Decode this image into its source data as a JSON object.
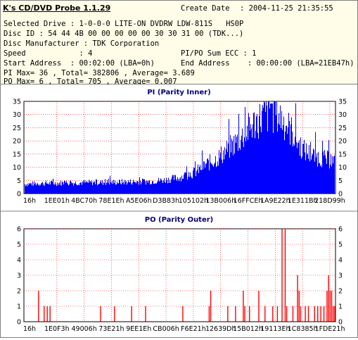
{
  "app": {
    "title": "K's CD/DVD Probe 1.1.29"
  },
  "info": {
    "create_date_label": "Create Date",
    "create_date_value": ": 2004-11-25 21:35:55",
    "line1": "Selected Drive : 1-0-0-0 LITE-ON DVDRW LDW-811S   HS0P",
    "line2": "Disc ID : 54 44 4B 00 00 00 00 00 30 30 31 00 (TDK...)",
    "line3": "Disc Manufacturer : TDK Corporation",
    "speed_text": "Speed            : 4",
    "ecc_text": "PI/PO Sum ECC : 1",
    "start_text": "Start Address  : 00:02:00 (LBA=0h)",
    "end_text": "End Address    : 00:00:00 (LBA=21EB47h)",
    "pi_stats": "PI Max= 36 , Total= 382806 , Average= 3.689",
    "po_stats": "PO Max= 6 , Total= 705 , Average= 0.007"
  },
  "colors": {
    "bar": "#0000ff",
    "po_bar": "#ff0000",
    "grid": "#ff0000",
    "title_text": "#00007a",
    "info_bg": "#fffde8"
  },
  "chart_data": [
    {
      "type": "bar",
      "title": "PI (Parity Inner)",
      "ylim": [
        0,
        35
      ],
      "yticks": [
        0,
        5,
        10,
        15,
        20,
        25,
        30,
        35
      ],
      "xtick_labels": [
        "16h",
        "1EE01h",
        "4BC70h",
        "78E1Eh",
        "A5E06h",
        "D3B83h",
        "105102h",
        "13B006h",
        "16FFCEh",
        "1A9E22h",
        "1E311Bh",
        "218D99h"
      ],
      "profile": [
        [
          0,
          3.5
        ],
        [
          0.05,
          3.8
        ],
        [
          0.15,
          4
        ],
        [
          0.28,
          4.2
        ],
        [
          0.4,
          4.5
        ],
        [
          0.45,
          5
        ],
        [
          0.5,
          6
        ],
        [
          0.55,
          8
        ],
        [
          0.58,
          10.5
        ],
        [
          0.62,
          13
        ],
        [
          0.66,
          17
        ],
        [
          0.7,
          21
        ],
        [
          0.73,
          25
        ],
        [
          0.77,
          29
        ],
        [
          0.8,
          30
        ],
        [
          0.82,
          29
        ],
        [
          0.84,
          26
        ],
        [
          0.86,
          23
        ],
        [
          0.88,
          19
        ],
        [
          0.9,
          16
        ],
        [
          0.93,
          14
        ],
        [
          0.96,
          13
        ],
        [
          1.0,
          12
        ]
      ],
      "max_value": 36,
      "grid": true
    },
    {
      "type": "bar",
      "title": "PO (Parity Outer)",
      "ylim": [
        0,
        6
      ],
      "yticks": [
        0,
        1,
        2,
        3,
        4,
        5,
        6
      ],
      "xtick_labels": [
        "16h",
        "1E0F3h",
        "49006h",
        "73E21h",
        "9EE1Eh",
        "CB006h",
        "F6E21h",
        "12639Dh",
        "15B012h",
        "19113Eh",
        "1C8385h",
        "1FDE21h"
      ],
      "spikes": [
        [
          0.045,
          2
        ],
        [
          0.063,
          1
        ],
        [
          0.073,
          1
        ],
        [
          0.082,
          1
        ],
        [
          0.245,
          1
        ],
        [
          0.29,
          1
        ],
        [
          0.345,
          1
        ],
        [
          0.39,
          1
        ],
        [
          0.51,
          1
        ],
        [
          0.595,
          1
        ],
        [
          0.6,
          2
        ],
        [
          0.655,
          1
        ],
        [
          0.68,
          1
        ],
        [
          0.705,
          2
        ],
        [
          0.71,
          1
        ],
        [
          0.725,
          1
        ],
        [
          0.755,
          2
        ],
        [
          0.775,
          1
        ],
        [
          0.8,
          1
        ],
        [
          0.815,
          1
        ],
        [
          0.83,
          6
        ],
        [
          0.84,
          6
        ],
        [
          0.845,
          1
        ],
        [
          0.865,
          1
        ],
        [
          0.88,
          3
        ],
        [
          0.885,
          2
        ],
        [
          0.89,
          1
        ],
        [
          0.905,
          1
        ],
        [
          0.915,
          1
        ],
        [
          0.935,
          1
        ],
        [
          0.945,
          1
        ],
        [
          0.955,
          1
        ],
        [
          0.965,
          1
        ],
        [
          0.975,
          2
        ],
        [
          0.98,
          3
        ],
        [
          0.985,
          2
        ],
        [
          0.99,
          2
        ],
        [
          0.995,
          1
        ],
        [
          1.0,
          1
        ]
      ],
      "grid": true
    }
  ]
}
